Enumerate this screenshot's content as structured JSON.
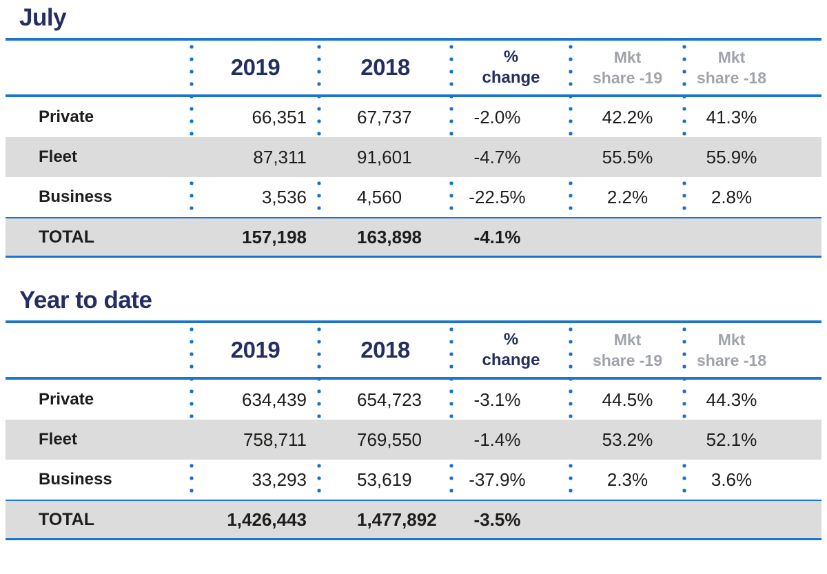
{
  "colors": {
    "accent_blue": "#1b74d0",
    "dot_blue": "#1b6fc9",
    "navy": "#252e60",
    "shaded_row_bg": "#dcdcdc",
    "muted_header_gray": "#a0a4aa",
    "text": "#1d1d1b"
  },
  "tables": [
    {
      "title": "July",
      "header": {
        "col_2019": "2019",
        "col_2018": "2018",
        "pct_line1": "%",
        "pct_line2": "change",
        "mkt19_line1": "Mkt",
        "mkt19_line2": "share -19",
        "mkt18_line1": "Mkt",
        "mkt18_line2": "share -18"
      },
      "rows": [
        {
          "label": "Private",
          "v2019": "66,351",
          "v2018": "67,737",
          "pct": "-2.0%",
          "mkt19": "42.2%",
          "mkt18": "41.3%",
          "shaded": false
        },
        {
          "label": "Fleet",
          "v2019": "87,311",
          "v2018": "91,601",
          "pct": "-4.7%",
          "mkt19": "55.5%",
          "mkt18": "55.9%",
          "shaded": true
        },
        {
          "label": "Business",
          "v2019": "3,536",
          "v2018": "4,560",
          "pct": "-22.5%",
          "mkt19": "2.2%",
          "mkt18": "2.8%",
          "shaded": false
        }
      ],
      "total": {
        "label": "TOTAL",
        "v2019": "157,198",
        "v2018": "163,898",
        "pct": "-4.1%",
        "mkt19": "",
        "mkt18": ""
      }
    },
    {
      "title": "Year to date",
      "header": {
        "col_2019": "2019",
        "col_2018": "2018",
        "pct_line1": "%",
        "pct_line2": "change",
        "mkt19_line1": "Mkt",
        "mkt19_line2": "share -19",
        "mkt18_line1": "Mkt",
        "mkt18_line2": "share -18"
      },
      "rows": [
        {
          "label": "Private",
          "v2019": "634,439",
          "v2018": "654,723",
          "pct": "-3.1%",
          "mkt19": "44.5%",
          "mkt18": "44.3%",
          "shaded": false
        },
        {
          "label": "Fleet",
          "v2019": "758,711",
          "v2018": "769,550",
          "pct": "-1.4%",
          "mkt19": "53.2%",
          "mkt18": "52.1%",
          "shaded": true
        },
        {
          "label": "Business",
          "v2019": "33,293",
          "v2018": "53,619",
          "pct": "-37.9%",
          "mkt19": "2.3%",
          "mkt18": "3.6%",
          "shaded": false
        }
      ],
      "total": {
        "label": "TOTAL",
        "v2019": "1,426,443",
        "v2018": "1,477,892",
        "pct": "-3.5%",
        "mkt19": "",
        "mkt18": ""
      }
    }
  ]
}
